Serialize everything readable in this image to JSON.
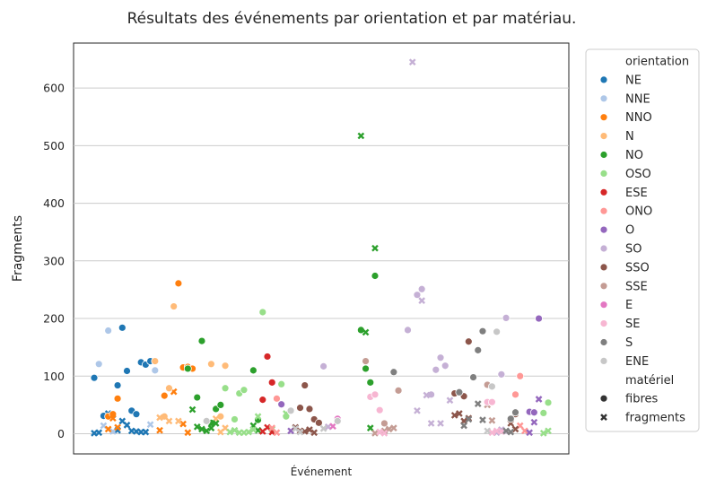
{
  "chart_data": {
    "type": "scatter",
    "title": "Résultats des événements par orientation et par matériau.",
    "xlabel": "Événement",
    "ylabel": "Fragments",
    "ylim": [
      -35,
      678
    ],
    "yticks": [
      0,
      100,
      200,
      300,
      400,
      500,
      600
    ],
    "grid": "horizontal",
    "legend_position": "outside-right",
    "hue_title": "orientation",
    "style_title": "matériel",
    "style_levels": [
      {
        "label": "fibres",
        "marker": "circle"
      },
      {
        "label": "fragments",
        "marker": "x"
      }
    ],
    "series": [
      {
        "name": "NE",
        "color": "#1f77b4",
        "fibres": [
          [
            0,
            97
          ],
          [
            2,
            31
          ],
          [
            5,
            84
          ],
          [
            6,
            184
          ],
          [
            7,
            109
          ],
          [
            8,
            40
          ],
          [
            9,
            34
          ],
          [
            10,
            124
          ],
          [
            11,
            120
          ],
          [
            12,
            126
          ]
        ],
        "fragments": [
          [
            0,
            1
          ],
          [
            1,
            2
          ],
          [
            3,
            35
          ],
          [
            4,
            33
          ],
          [
            5,
            6
          ],
          [
            6,
            22
          ],
          [
            7,
            15
          ],
          [
            8,
            5
          ],
          [
            9,
            4
          ],
          [
            10,
            3
          ],
          [
            11,
            3
          ]
        ]
      },
      {
        "name": "NNE",
        "color": "#aec7e8",
        "fibres": [
          [
            1,
            121
          ],
          [
            3,
            179
          ],
          [
            13,
            110
          ]
        ],
        "fragments": [
          [
            2,
            14
          ],
          [
            4,
            4
          ],
          [
            12,
            16
          ]
        ]
      },
      {
        "name": "NNO",
        "color": "#ff7f0e",
        "fibres": [
          [
            3,
            30
          ],
          [
            4,
            34
          ],
          [
            5,
            61
          ],
          [
            15,
            66
          ],
          [
            18,
            261
          ],
          [
            19,
            115
          ],
          [
            20,
            116
          ],
          [
            21,
            113
          ]
        ],
        "fragments": [
          [
            3,
            8
          ],
          [
            4,
            27
          ],
          [
            5,
            11
          ],
          [
            14,
            6
          ],
          [
            17,
            73
          ],
          [
            19,
            17
          ],
          [
            20,
            2
          ]
        ]
      },
      {
        "name": "N",
        "color": "#ffbb78",
        "fibres": [
          [
            13,
            126
          ],
          [
            15,
            30
          ],
          [
            16,
            79
          ],
          [
            17,
            221
          ],
          [
            25,
            121
          ],
          [
            27,
            30
          ],
          [
            28,
            118
          ]
        ],
        "fragments": [
          [
            14,
            28
          ],
          [
            16,
            22
          ],
          [
            18,
            22
          ],
          [
            26,
            26
          ],
          [
            28,
            10
          ],
          [
            27,
            3
          ]
        ]
      },
      {
        "name": "NO",
        "color": "#2ca02c",
        "fibres": [
          [
            20,
            113
          ],
          [
            22,
            63
          ],
          [
            23,
            161
          ],
          [
            24,
            22
          ],
          [
            25,
            19
          ],
          [
            26,
            43
          ],
          [
            27,
            50
          ],
          [
            34,
            110
          ],
          [
            35,
            24
          ],
          [
            57,
            180
          ],
          [
            58,
            113
          ],
          [
            59,
            89
          ],
          [
            60,
            274
          ]
        ],
        "fragments": [
          [
            21,
            42
          ],
          [
            22,
            12
          ],
          [
            23,
            8
          ],
          [
            24,
            5
          ],
          [
            25,
            10
          ],
          [
            26,
            18
          ],
          [
            34,
            14
          ],
          [
            35,
            6
          ],
          [
            57,
            517
          ],
          [
            58,
            176
          ],
          [
            59,
            10
          ],
          [
            60,
            322
          ]
        ]
      },
      {
        "name": "OSO",
        "color": "#98df8a",
        "fibres": [
          [
            28,
            79
          ],
          [
            30,
            25
          ],
          [
            31,
            70
          ],
          [
            32,
            76
          ],
          [
            36,
            211
          ],
          [
            40,
            86
          ],
          [
            41,
            30
          ],
          [
            96,
            36
          ],
          [
            97,
            54
          ]
        ],
        "fragments": [
          [
            29,
            3
          ],
          [
            30,
            6
          ],
          [
            31,
            2
          ],
          [
            32,
            2
          ],
          [
            33,
            3
          ],
          [
            34,
            7
          ],
          [
            35,
            30
          ],
          [
            38,
            8
          ],
          [
            41,
            35
          ],
          [
            96,
            1
          ],
          [
            97,
            5
          ]
        ]
      },
      {
        "name": "ESE",
        "color": "#d62728",
        "fibres": [
          [
            36,
            59
          ],
          [
            37,
            134
          ],
          [
            38,
            89
          ]
        ],
        "fragments": [
          [
            36,
            4
          ],
          [
            37,
            11
          ],
          [
            38,
            3
          ]
        ]
      },
      {
        "name": "ONO",
        "color": "#ff9896",
        "fibres": [
          [
            39,
            61
          ],
          [
            90,
            68
          ],
          [
            91,
            100
          ]
        ],
        "fragments": [
          [
            38,
            10
          ],
          [
            39,
            2
          ],
          [
            91,
            14
          ],
          [
            92,
            5
          ]
        ]
      },
      {
        "name": "O",
        "color": "#9467bd",
        "fibres": [
          [
            40,
            51
          ],
          [
            93,
            38
          ],
          [
            94,
            37
          ],
          [
            95,
            200
          ]
        ],
        "fragments": [
          [
            42,
            5
          ],
          [
            93,
            2
          ],
          [
            94,
            20
          ],
          [
            95,
            60
          ]
        ]
      },
      {
        "name": "SO",
        "color": "#c5b0d5",
        "fibres": [
          [
            49,
            117
          ],
          [
            67,
            180
          ],
          [
            69,
            241
          ],
          [
            70,
            251
          ],
          [
            72,
            68
          ],
          [
            73,
            111
          ],
          [
            74,
            132
          ],
          [
            75,
            118
          ],
          [
            87,
            103
          ],
          [
            88,
            201
          ]
        ],
        "fragments": [
          [
            50,
            12
          ],
          [
            68,
            645
          ],
          [
            69,
            40
          ],
          [
            70,
            231
          ],
          [
            71,
            67
          ],
          [
            72,
            18
          ],
          [
            74,
            18
          ],
          [
            76,
            58
          ],
          [
            86,
            2
          ],
          [
            87,
            7
          ],
          [
            88,
            4
          ]
        ]
      },
      {
        "name": "SSO",
        "color": "#8c564b",
        "fibres": [
          [
            44,
            45
          ],
          [
            45,
            84
          ],
          [
            46,
            43
          ],
          [
            47,
            25
          ],
          [
            48,
            19
          ],
          [
            77,
            70
          ],
          [
            79,
            65
          ],
          [
            80,
            160
          ],
          [
            90,
            34
          ]
        ],
        "fragments": [
          [
            43,
            11
          ],
          [
            44,
            5
          ],
          [
            45,
            4
          ],
          [
            46,
            7
          ],
          [
            47,
            2
          ],
          [
            77,
            32
          ],
          [
            78,
            35
          ],
          [
            79,
            22
          ],
          [
            80,
            27
          ],
          [
            89,
            18
          ],
          [
            90,
            8
          ]
        ]
      },
      {
        "name": "SSE",
        "color": "#c49c94",
        "fibres": [
          [
            58,
            126
          ],
          [
            62,
            18
          ],
          [
            65,
            75
          ],
          [
            84,
            85
          ]
        ],
        "fragments": [
          [
            60,
            1
          ],
          [
            61,
            3
          ],
          [
            62,
            5
          ],
          [
            63,
            8
          ],
          [
            64,
            10
          ],
          [
            84,
            50
          ],
          [
            85,
            23
          ]
        ]
      },
      {
        "name": "E",
        "color": "#e377c2",
        "fibres": [
          [
            52,
            26
          ]
        ],
        "fragments": [
          [
            51,
            13
          ]
        ]
      },
      {
        "name": "SE",
        "color": "#f7b6d2",
        "fibres": [
          [
            59,
            64
          ],
          [
            60,
            68
          ],
          [
            61,
            41
          ],
          [
            84,
            55
          ],
          [
            85,
            55
          ]
        ],
        "fragments": [
          [
            61,
            3
          ],
          [
            62,
            1
          ],
          [
            85,
            2
          ],
          [
            86,
            5
          ],
          [
            87,
            4
          ]
        ]
      },
      {
        "name": "S",
        "color": "#7f7f7f",
        "fibres": [
          [
            64,
            107
          ],
          [
            78,
            72
          ],
          [
            81,
            98
          ],
          [
            82,
            145
          ],
          [
            83,
            178
          ],
          [
            89,
            26
          ],
          [
            90,
            37
          ]
        ],
        "fragments": [
          [
            79,
            14
          ],
          [
            80,
            25
          ],
          [
            82,
            52
          ],
          [
            83,
            24
          ],
          [
            88,
            5
          ],
          [
            89,
            3
          ]
        ]
      },
      {
        "name": "ENE",
        "color": "#c7c7c7",
        "fibres": [
          [
            24,
            22
          ],
          [
            42,
            40
          ],
          [
            52,
            22
          ],
          [
            85,
            82
          ],
          [
            86,
            177
          ]
        ],
        "fragments": [
          [
            43,
            9
          ],
          [
            44,
            3
          ],
          [
            49,
            9
          ],
          [
            84,
            5
          ]
        ]
      }
    ]
  }
}
